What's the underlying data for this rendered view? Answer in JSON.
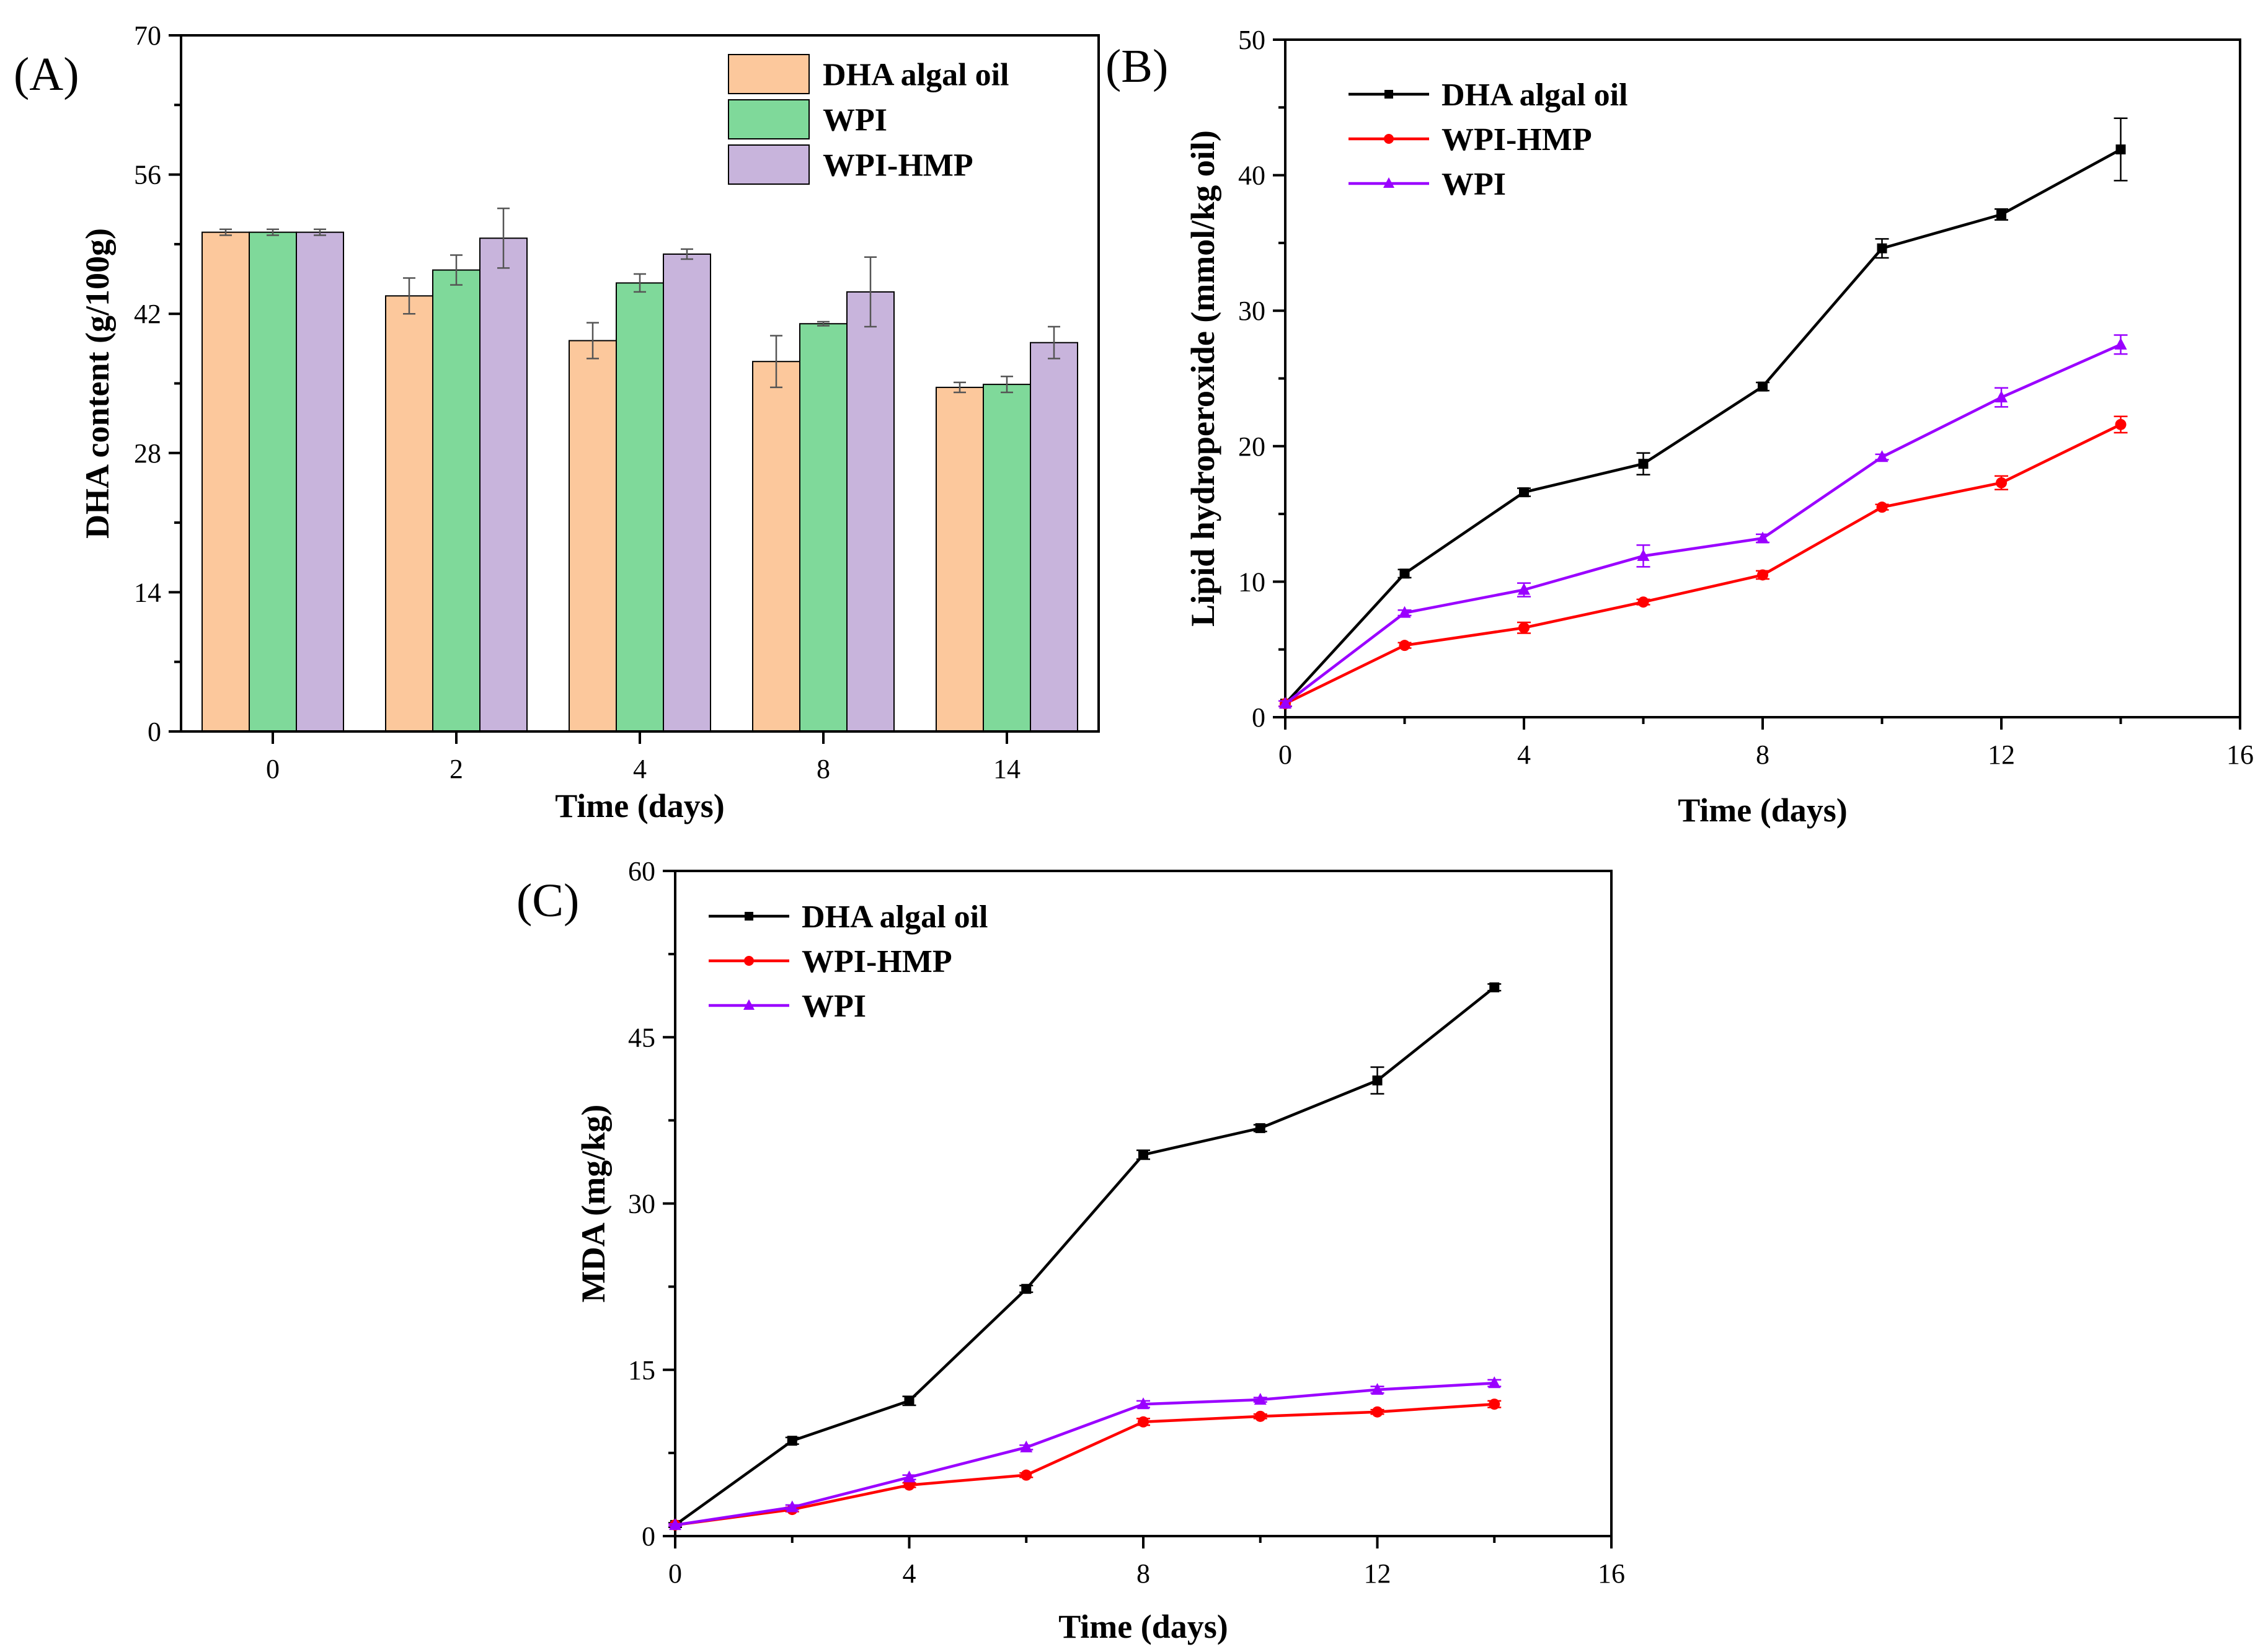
{
  "figure": {
    "colors": {
      "dha": "#000000",
      "wpi_hmp": "#ff0000",
      "wpi": "#9a00ff",
      "bar_dha": "#fcc89c",
      "bar_wpi": "#7fd99a",
      "bar_wpihmp": "#c8b4dc",
      "bar_err": "#555555"
    }
  },
  "chart_data": [
    {
      "panel_label": "(A)",
      "type": "bar",
      "title": "",
      "xlabel": "Time (days)",
      "ylabel": "DHA content (g/100g)",
      "ylim": [
        0,
        70
      ],
      "yticks": [
        0,
        14,
        28,
        42,
        56,
        70
      ],
      "categories": [
        "0",
        "2",
        "4",
        "8",
        "14"
      ],
      "legend_position": "top-right",
      "series": [
        {
          "name": "DHA algal oil",
          "color_key": "bar_dha",
          "values": [
            50.2,
            43.8,
            39.3,
            37.2,
            34.6
          ],
          "errors": [
            0.3,
            1.8,
            1.8,
            2.6,
            0.5
          ]
        },
        {
          "name": "WPI",
          "color_key": "bar_wpi",
          "values": [
            50.2,
            46.4,
            45.1,
            41.0,
            34.9
          ],
          "errors": [
            0.3,
            1.5,
            0.9,
            0.2,
            0.8
          ]
        },
        {
          "name": "WPI-HMP",
          "color_key": "bar_wpihmp",
          "values": [
            50.2,
            49.6,
            48.0,
            44.2,
            39.1
          ],
          "errors": [
            0.3,
            3.0,
            0.5,
            3.5,
            1.6
          ]
        }
      ]
    },
    {
      "panel_label": "(B)",
      "type": "line",
      "title": "",
      "xlabel": "Time (days)",
      "ylabel": "Lipid hydroperoxide (mmol/kg oil)",
      "xlim": [
        0,
        16
      ],
      "ylim": [
        0,
        50
      ],
      "xticks": [
        0,
        4,
        8,
        12,
        16
      ],
      "yticks": [
        0,
        10,
        20,
        30,
        40,
        50
      ],
      "x": [
        0,
        2,
        4,
        6,
        8,
        10,
        12,
        14
      ],
      "legend_position": "top-left",
      "series": [
        {
          "name": "DHA algal oil",
          "color_key": "dha",
          "marker": "square",
          "values": [
            1.0,
            10.6,
            16.6,
            18.7,
            24.4,
            34.6,
            37.1,
            41.9
          ],
          "errors": [
            0.2,
            0.3,
            0.3,
            0.8,
            0.3,
            0.7,
            0.4,
            2.3
          ]
        },
        {
          "name": "WPI-HMP",
          "color_key": "wpi_hmp",
          "marker": "circle",
          "values": [
            1.0,
            5.3,
            6.6,
            8.5,
            10.5,
            15.5,
            17.3,
            21.6
          ],
          "errors": [
            0.2,
            0.2,
            0.4,
            0.2,
            0.3,
            0.2,
            0.5,
            0.6
          ]
        },
        {
          "name": "WPI",
          "color_key": "wpi",
          "marker": "triangle",
          "values": [
            1.0,
            7.7,
            9.4,
            11.9,
            13.2,
            19.2,
            23.6,
            27.5
          ],
          "errors": [
            0.2,
            0.2,
            0.5,
            0.8,
            0.3,
            0.2,
            0.7,
            0.7
          ]
        }
      ]
    },
    {
      "panel_label": "(C)",
      "type": "line",
      "title": "",
      "xlabel": "Time (days)",
      "ylabel": "MDA (mg/kg)",
      "xlim": [
        0,
        16
      ],
      "ylim": [
        0,
        60
      ],
      "xticks": [
        0,
        4,
        8,
        12,
        16
      ],
      "yticks": [
        0,
        15,
        30,
        45,
        60
      ],
      "x": [
        0,
        2,
        4,
        6,
        8,
        10,
        12,
        14
      ],
      "legend_position": "top-left",
      "series": [
        {
          "name": "DHA algal oil",
          "color_key": "dha",
          "marker": "square",
          "values": [
            1.0,
            8.6,
            12.2,
            22.3,
            34.4,
            36.8,
            41.1,
            49.5
          ],
          "errors": [
            0.2,
            0.3,
            0.4,
            0.3,
            0.4,
            0.3,
            1.2,
            0.3
          ]
        },
        {
          "name": "WPI-HMP",
          "color_key": "wpi_hmp",
          "marker": "circle",
          "values": [
            1.0,
            2.4,
            4.6,
            5.5,
            10.3,
            10.8,
            11.2,
            11.9
          ],
          "errors": [
            0.1,
            0.2,
            0.2,
            0.2,
            0.3,
            0.2,
            0.2,
            0.3
          ]
        },
        {
          "name": "WPI",
          "color_key": "wpi",
          "marker": "triangle",
          "values": [
            1.0,
            2.6,
            5.3,
            8.0,
            11.9,
            12.3,
            13.2,
            13.8
          ],
          "errors": [
            0.1,
            0.2,
            0.2,
            0.2,
            0.3,
            0.2,
            0.3,
            0.3
          ]
        }
      ]
    }
  ]
}
